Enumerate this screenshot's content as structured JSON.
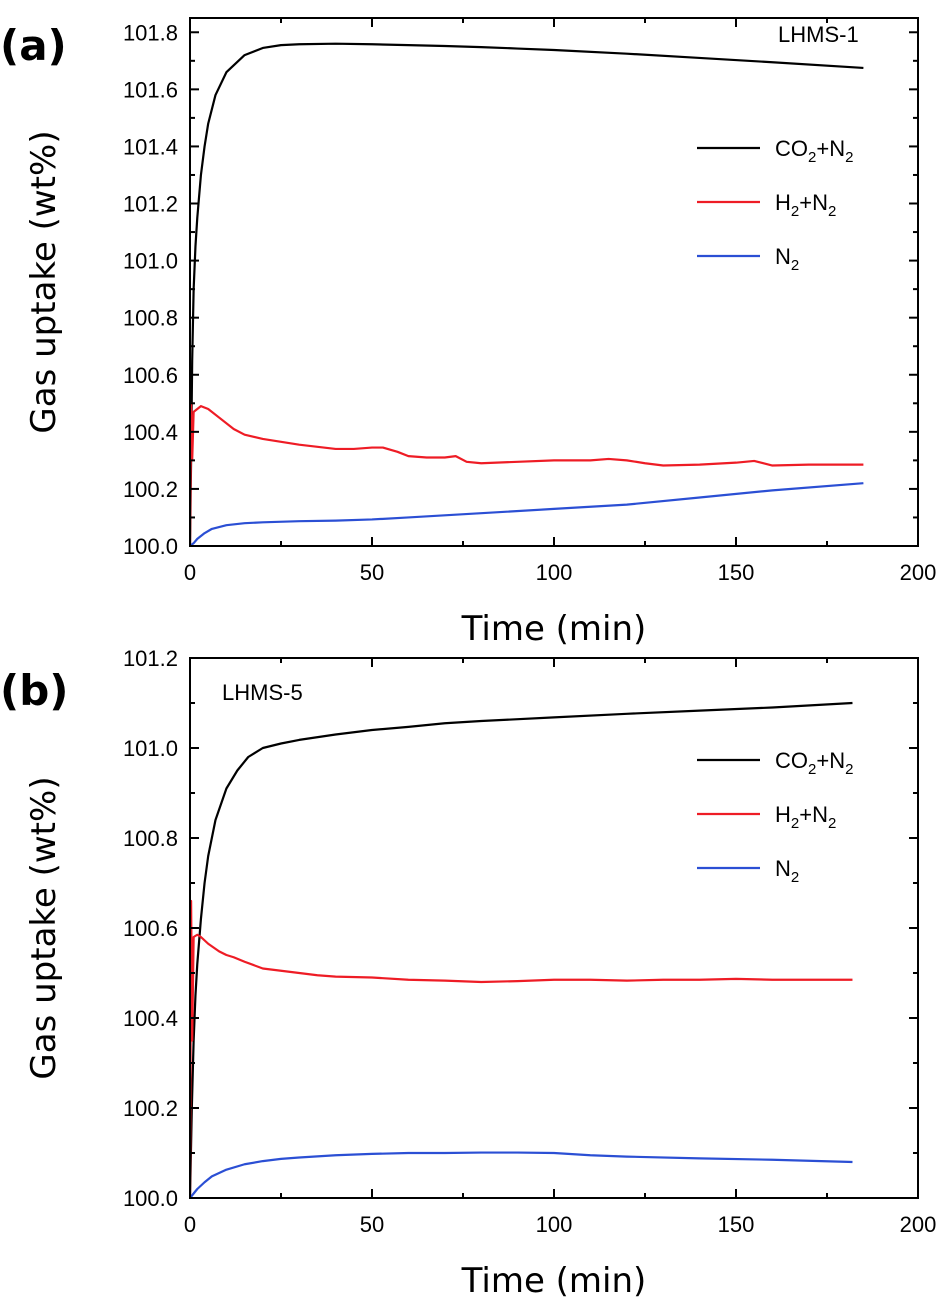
{
  "chart_data": [
    {
      "type": "line",
      "panel_label": "(a)",
      "sample_label": "LHMS-1",
      "xlabel": "Time (min)",
      "ylabel": "Gas uptake (wt%)",
      "xlim": [
        0,
        200
      ],
      "ylim": [
        100.0,
        101.85
      ],
      "xticks": [
        0,
        50,
        100,
        150,
        200
      ],
      "xtick_labels": [
        "0",
        "50",
        "100",
        "150",
        "200"
      ],
      "yticks": [
        100.0,
        100.2,
        100.4,
        100.6,
        100.8,
        101.0,
        101.2,
        101.4,
        101.6,
        101.8
      ],
      "ytick_labels": [
        "100.0",
        "100.2",
        "100.4",
        "100.6",
        "100.8",
        "101.0",
        "101.2",
        "101.4",
        "101.6",
        "101.8"
      ],
      "legend_position": "upper-right",
      "grid": false,
      "series": [
        {
          "name": "CO2+N2",
          "legend": [
            [
              "CO",
              ""
            ],
            [
              "2",
              "sub"
            ],
            [
              "+N",
              ""
            ],
            [
              "2",
              "sub"
            ]
          ],
          "color": "#000000",
          "x": [
            0,
            0.3,
            0.6,
            1,
            1.5,
            2,
            3,
            4,
            5,
            7,
            10,
            15,
            20,
            25,
            30,
            40,
            50,
            60,
            70,
            80,
            90,
            100,
            120,
            140,
            160,
            185
          ],
          "y": [
            100.0,
            100.3,
            100.65,
            100.9,
            101.05,
            101.15,
            101.3,
            101.4,
            101.48,
            101.58,
            101.66,
            101.72,
            101.745,
            101.755,
            101.758,
            101.76,
            101.758,
            101.755,
            101.752,
            101.748,
            101.743,
            101.738,
            101.725,
            101.71,
            101.695,
            101.675
          ]
        },
        {
          "name": "H2+N2",
          "legend": [
            [
              "H",
              ""
            ],
            [
              "2",
              "sub"
            ],
            [
              "+N",
              ""
            ],
            [
              "2",
              "sub"
            ]
          ],
          "color": "#ee1c25",
          "x": [
            0,
            0.3,
            0.6,
            1,
            2,
            3,
            5,
            8,
            12,
            15,
            20,
            25,
            30,
            40,
            45,
            50,
            53,
            57,
            60,
            65,
            70,
            73,
            76,
            80,
            90,
            100,
            110,
            115,
            120,
            125,
            130,
            140,
            150,
            155,
            160,
            170,
            185
          ],
          "y": [
            100.0,
            100.5,
            100.3,
            100.47,
            100.48,
            100.49,
            100.48,
            100.45,
            100.41,
            100.39,
            100.375,
            100.365,
            100.355,
            100.34,
            100.34,
            100.345,
            100.345,
            100.33,
            100.315,
            100.31,
            100.31,
            100.315,
            100.295,
            100.29,
            100.295,
            100.3,
            100.3,
            100.305,
            100.3,
            100.29,
            100.282,
            100.285,
            100.292,
            100.298,
            100.282,
            100.285,
            100.285
          ]
        },
        {
          "name": "N2",
          "legend": [
            [
              "N",
              ""
            ],
            [
              "2",
              "sub"
            ]
          ],
          "color": "#2b4fd4",
          "x": [
            0,
            1,
            2,
            4,
            6,
            10,
            15,
            20,
            30,
            40,
            50,
            60,
            80,
            100,
            120,
            140,
            160,
            185
          ],
          "y": [
            100.0,
            100.01,
            100.025,
            100.045,
            100.06,
            100.073,
            100.08,
            100.083,
            100.087,
            100.089,
            100.093,
            100.1,
            100.115,
            100.13,
            100.145,
            100.17,
            100.195,
            100.22
          ]
        }
      ]
    },
    {
      "type": "line",
      "panel_label": "(b)",
      "sample_label": "LHMS-5",
      "xlabel": "Time (min)",
      "ylabel": "Gas uptake (wt%)",
      "xlim": [
        0,
        200
      ],
      "ylim": [
        100.0,
        101.2
      ],
      "xticks": [
        0,
        50,
        100,
        150,
        200
      ],
      "xtick_labels": [
        "0",
        "50",
        "100",
        "150",
        "200"
      ],
      "yticks": [
        100.0,
        100.2,
        100.4,
        100.6,
        100.8,
        101.0,
        101.2
      ],
      "ytick_labels": [
        "100.0",
        "100.2",
        "100.4",
        "100.6",
        "100.8",
        "101.0",
        "101.2"
      ],
      "legend_position": "upper-right",
      "grid": false,
      "series": [
        {
          "name": "CO2+N2",
          "legend": [
            [
              "CO",
              ""
            ],
            [
              "2",
              "sub"
            ],
            [
              "+N",
              ""
            ],
            [
              "2",
              "sub"
            ]
          ],
          "color": "#000000",
          "x": [
            0,
            0.5,
            1,
            1.5,
            2,
            3,
            4,
            5,
            7,
            10,
            13,
            16,
            20,
            25,
            30,
            40,
            50,
            60,
            70,
            80,
            100,
            120,
            140,
            160,
            182
          ],
          "y": [
            100.0,
            100.2,
            100.35,
            100.45,
            100.52,
            100.62,
            100.7,
            100.76,
            100.84,
            100.91,
            100.95,
            100.98,
            101.0,
            101.01,
            101.018,
            101.03,
            101.04,
            101.047,
            101.055,
            101.06,
            101.068,
            101.076,
            101.083,
            101.09,
            101.1
          ]
        },
        {
          "name": "H2+N2",
          "legend": [
            [
              "H",
              ""
            ],
            [
              "2",
              "sub"
            ],
            [
              "+N",
              ""
            ],
            [
              "2",
              "sub"
            ]
          ],
          "color": "#ee1c25",
          "x": [
            0,
            0.3,
            0.6,
            1,
            2,
            3,
            5,
            8,
            10,
            12,
            15,
            20,
            25,
            30,
            35,
            40,
            50,
            60,
            70,
            80,
            90,
            100,
            110,
            120,
            130,
            140,
            150,
            160,
            170,
            182
          ],
          "y": [
            100.0,
            100.66,
            100.35,
            100.58,
            100.585,
            100.58,
            100.565,
            100.548,
            100.54,
            100.535,
            100.525,
            100.51,
            100.505,
            100.5,
            100.495,
            100.492,
            100.49,
            100.485,
            100.483,
            100.48,
            100.482,
            100.485,
            100.485,
            100.483,
            100.485,
            100.485,
            100.487,
            100.485,
            100.485,
            100.485
          ]
        },
        {
          "name": "N2",
          "legend": [
            [
              "N",
              ""
            ],
            [
              "2",
              "sub"
            ]
          ],
          "color": "#2b4fd4",
          "x": [
            0,
            1,
            2,
            4,
            6,
            10,
            15,
            20,
            25,
            30,
            40,
            50,
            60,
            70,
            80,
            90,
            100,
            110,
            120,
            140,
            160,
            182
          ],
          "y": [
            100.0,
            100.01,
            100.02,
            100.035,
            100.048,
            100.063,
            100.075,
            100.082,
            100.087,
            100.09,
            100.095,
            100.098,
            100.1,
            100.1,
            100.101,
            100.101,
            100.1,
            100.095,
            100.092,
            100.088,
            100.085,
            100.08
          ]
        }
      ]
    }
  ]
}
